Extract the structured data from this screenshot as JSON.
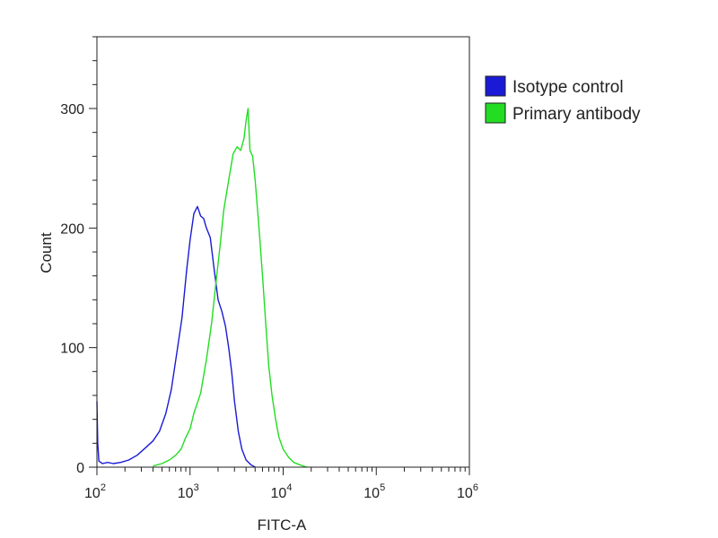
{
  "chart_data": {
    "type": "line",
    "title": "",
    "xlabel": "FITC-A",
    "ylabel": "Count",
    "x_scale": "log",
    "xlim": [
      100,
      1000000
    ],
    "ylim": [
      0,
      360
    ],
    "x_tick_labels": [
      {
        "base": "10",
        "exp": "2",
        "value": 100
      },
      {
        "base": "10",
        "exp": "3",
        "value": 1000
      },
      {
        "base": "10",
        "exp": "4",
        "value": 10000
      },
      {
        "base": "10",
        "exp": "5",
        "value": 100000
      },
      {
        "base": "10",
        "exp": "6",
        "value": 1000000
      }
    ],
    "y_ticks": [
      0,
      100,
      200,
      300
    ],
    "y_tick_labels": [
      "0",
      "100",
      "200",
      "300"
    ],
    "grid": false,
    "legend_position": "right",
    "series": [
      {
        "name": "Isotype control",
        "color": "#1a1ad6",
        "points": [
          [
            100,
            55
          ],
          [
            102,
            20
          ],
          [
            105,
            5
          ],
          [
            115,
            3
          ],
          [
            130,
            4
          ],
          [
            150,
            3
          ],
          [
            180,
            4
          ],
          [
            220,
            6
          ],
          [
            270,
            10
          ],
          [
            330,
            16
          ],
          [
            400,
            22
          ],
          [
            470,
            30
          ],
          [
            550,
            45
          ],
          [
            630,
            65
          ],
          [
            720,
            95
          ],
          [
            820,
            125
          ],
          [
            920,
            165
          ],
          [
            1000,
            190
          ],
          [
            1100,
            212
          ],
          [
            1200,
            218
          ],
          [
            1300,
            210
          ],
          [
            1400,
            208
          ],
          [
            1500,
            200
          ],
          [
            1650,
            192
          ],
          [
            1800,
            168
          ],
          [
            2000,
            140
          ],
          [
            2200,
            130
          ],
          [
            2400,
            118
          ],
          [
            2600,
            100
          ],
          [
            2800,
            80
          ],
          [
            3000,
            55
          ],
          [
            3300,
            30
          ],
          [
            3600,
            15
          ],
          [
            4000,
            6
          ],
          [
            4500,
            2
          ],
          [
            5000,
            0
          ]
        ]
      },
      {
        "name": "Primary antibody",
        "color": "#22dd22",
        "points": [
          [
            400,
            1
          ],
          [
            500,
            3
          ],
          [
            600,
            6
          ],
          [
            700,
            10
          ],
          [
            800,
            15
          ],
          [
            900,
            25
          ],
          [
            1000,
            32
          ],
          [
            1100,
            45
          ],
          [
            1300,
            62
          ],
          [
            1500,
            90
          ],
          [
            1700,
            120
          ],
          [
            1900,
            155
          ],
          [
            2100,
            185
          ],
          [
            2300,
            215
          ],
          [
            2600,
            240
          ],
          [
            2900,
            262
          ],
          [
            3200,
            268
          ],
          [
            3500,
            265
          ],
          [
            3800,
            275
          ],
          [
            4000,
            290
          ],
          [
            4200,
            300
          ],
          [
            4400,
            265
          ],
          [
            4700,
            260
          ],
          [
            5000,
            240
          ],
          [
            5500,
            200
          ],
          [
            6000,
            160
          ],
          [
            6500,
            120
          ],
          [
            7000,
            85
          ],
          [
            7600,
            60
          ],
          [
            8300,
            40
          ],
          [
            9000,
            25
          ],
          [
            10000,
            15
          ],
          [
            11500,
            8
          ],
          [
            13000,
            4
          ],
          [
            15000,
            2
          ],
          [
            18000,
            0
          ]
        ]
      }
    ]
  }
}
